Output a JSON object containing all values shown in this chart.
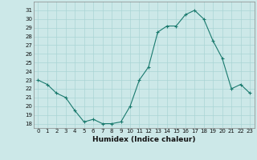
{
  "x": [
    0,
    1,
    2,
    3,
    4,
    5,
    6,
    7,
    8,
    9,
    10,
    11,
    12,
    13,
    14,
    15,
    16,
    17,
    18,
    19,
    20,
    21,
    22,
    23
  ],
  "y": [
    23,
    22.5,
    21.5,
    21,
    19.5,
    18.2,
    18.5,
    18,
    18,
    18.2,
    20,
    23,
    24.5,
    28.5,
    29.2,
    29.2,
    30.5,
    31,
    30,
    27.5,
    25.5,
    22,
    22.5,
    21.5
  ],
  "line_color": "#1a7a6e",
  "marker": "+",
  "background_color": "#cce8e8",
  "grid_color": "#aad4d4",
  "xlabel": "Humidex (Indice chaleur)",
  "xlim": [
    -0.5,
    23.5
  ],
  "ylim": [
    17.5,
    32
  ],
  "yticks": [
    18,
    19,
    20,
    21,
    22,
    23,
    24,
    25,
    26,
    27,
    28,
    29,
    30,
    31
  ],
  "xticks": [
    0,
    1,
    2,
    3,
    4,
    5,
    6,
    7,
    8,
    9,
    10,
    11,
    12,
    13,
    14,
    15,
    16,
    17,
    18,
    19,
    20,
    21,
    22,
    23
  ],
  "tick_fontsize": 5.0,
  "xlabel_fontsize": 6.5
}
